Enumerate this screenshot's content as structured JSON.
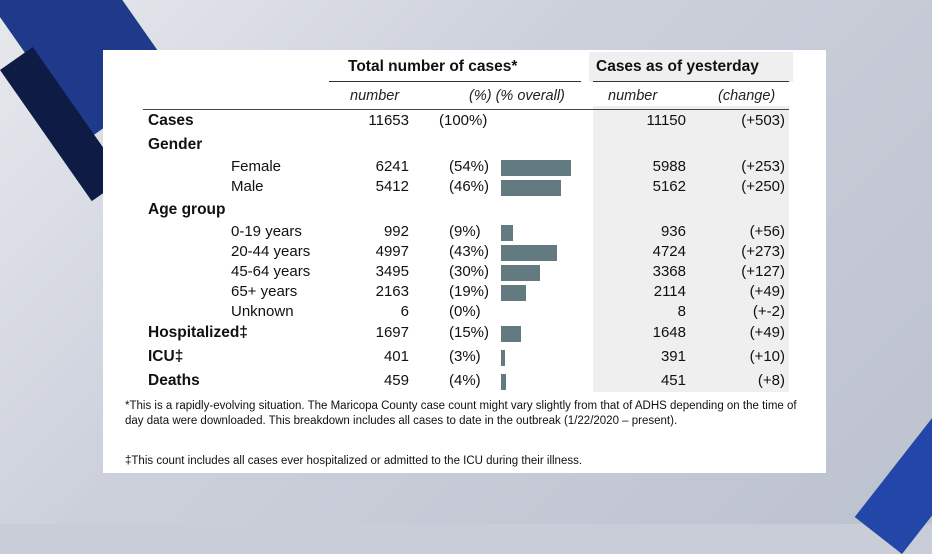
{
  "header": {
    "total_title": "Total number of cases*",
    "yesterday_title": "Cases as of yesterday",
    "sub_number": "number",
    "sub_pct": "(%) (% overall)",
    "sub_yest_number": "number",
    "sub_yest_change": "(change)"
  },
  "rows": [
    {
      "label": "Cases",
      "type": "bold",
      "number": "11653",
      "pct": "(100%)",
      "yest": "11150",
      "change": "(+503)"
    },
    {
      "label": "Gender",
      "type": "section"
    },
    {
      "label": "Female",
      "type": "indent",
      "number": "6241",
      "pct": "(54%)",
      "yest": "5988",
      "change": "(+253)"
    },
    {
      "label": "Male",
      "type": "indent",
      "number": "5412",
      "pct": "(46%)",
      "yest": "5162",
      "change": "(+250)"
    },
    {
      "label": "Age group",
      "type": "section"
    },
    {
      "label": "0-19 years",
      "type": "indent",
      "number": "992",
      "pct": "(9%)",
      "yest": "936",
      "change": "(+56)"
    },
    {
      "label": "20-44 years",
      "type": "indent",
      "number": "4997",
      "pct": "(43%)",
      "yest": "4724",
      "change": "(+273)"
    },
    {
      "label": "45-64 years",
      "type": "indent",
      "number": "3495",
      "pct": "(30%)",
      "yest": "3368",
      "change": "(+127)"
    },
    {
      "label": "65+ years",
      "type": "indent",
      "number": "2163",
      "pct": "(19%)",
      "yest": "2114",
      "change": "(+49)"
    },
    {
      "label": "Unknown",
      "type": "indent",
      "number": "6",
      "pct": "(0%)",
      "yest": "8",
      "change": "(+-2)"
    },
    {
      "label": "Hospitalized‡",
      "type": "bold",
      "number": "1697",
      "pct": "(15%)",
      "yest": "1648",
      "change": "(+49)"
    },
    {
      "label": "ICU‡",
      "type": "bold",
      "number": "401",
      "pct": "(3%)",
      "yest": "391",
      "change": "(+10)"
    },
    {
      "label": "Deaths",
      "type": "bold",
      "number": "459",
      "pct": "(4%)",
      "yest": "451",
      "change": "(+8)"
    }
  ],
  "footnotes": {
    "star": "*This is a rapidly-evolving situation. The Maricopa County case count might vary slightly from that of ADHS depending on the time of day data were downloaded. This breakdown includes all cases to date in the outbreak (1/22/2020 – present).",
    "dagger": "‡This count includes all cases ever hospitalized or admitted to the ICU during their illness."
  },
  "colors": {
    "bar": "#627a80",
    "yesterday_shade": "#efefef",
    "bg_blue": "#1f3a8a"
  },
  "chart_data": {
    "type": "bar",
    "categories": [
      "Female",
      "Male",
      "0-19 years",
      "20-44 years",
      "45-64 years",
      "65+ years",
      "Unknown",
      "Hospitalized",
      "ICU",
      "Deaths"
    ],
    "values": [
      54,
      46,
      9,
      43,
      30,
      19,
      0,
      15,
      3,
      4
    ],
    "orientation": "horizontal",
    "title": "",
    "xlabel": "",
    "ylabel": ""
  }
}
